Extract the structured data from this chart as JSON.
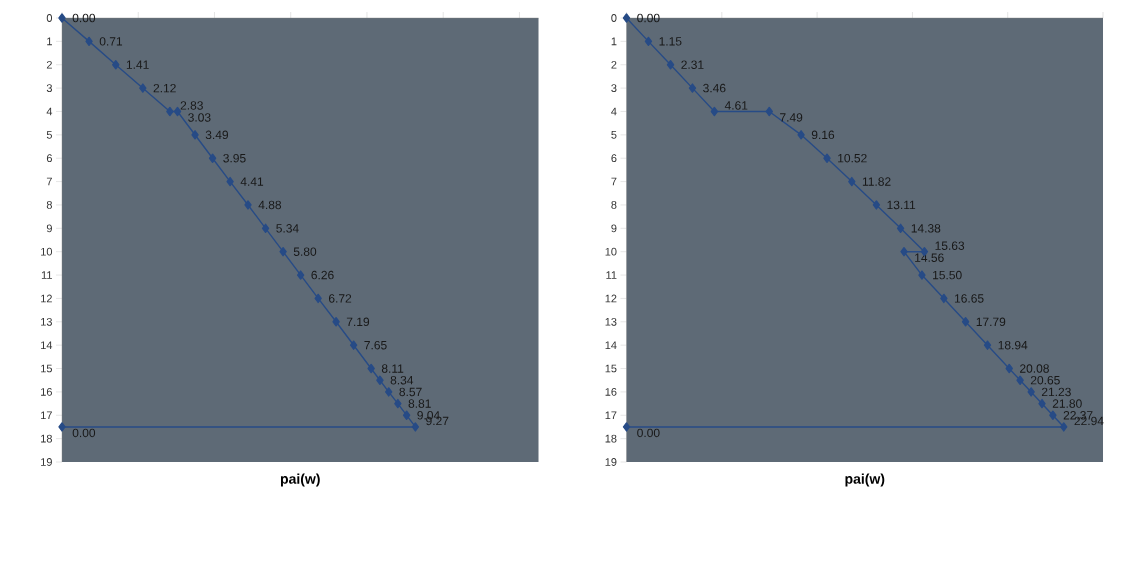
{
  "chart_data": [
    {
      "type": "line",
      "orientation": "horizontal",
      "xlabel": "pai(w)",
      "color": "#274b86",
      "marker": "diamond",
      "tick_labels": "y",
      "x": [
        0,
        1,
        2,
        3,
        4,
        4,
        5,
        6,
        7,
        8,
        9,
        10,
        11,
        12,
        13,
        14,
        15,
        15.5,
        16,
        16.5,
        17,
        17.5,
        17.5
      ],
      "values": [
        0,
        0.71,
        1.41,
        2.12,
        2.83,
        3.03,
        3.49,
        3.95,
        4.41,
        4.88,
        5.34,
        5.8,
        6.26,
        6.72,
        7.19,
        7.65,
        8.11,
        8.34,
        8.57,
        8.81,
        9.04,
        9.27,
        0
      ],
      "value_labels": [
        "0.00",
        "0.71",
        "1.41",
        "2.12",
        "2.83",
        "3.03",
        "3.49",
        "3.95",
        "4.41",
        "4.88",
        "5.34",
        "5.80",
        "6.26",
        "6.72",
        "7.19",
        "7.65",
        "8.11",
        "8.34",
        "8.57",
        "8.81",
        "9.04",
        "9.27",
        "0.00"
      ],
      "xlim": [
        0,
        12.5
      ],
      "xticks": [
        {
          "value": 0,
          "label": null
        },
        {
          "value": 2,
          "label": null
        },
        {
          "value": 4,
          "label": null
        },
        {
          "value": 6,
          "label": null
        },
        {
          "value": 8,
          "label": null
        },
        {
          "value": 10,
          "label": null
        },
        {
          "value": 12,
          "label": null
        }
      ],
      "ylim": [
        19,
        0
      ],
      "yticks": [
        0,
        1,
        2,
        3,
        4,
        5,
        6,
        7,
        8,
        9,
        10,
        11,
        12,
        13,
        14,
        15,
        16,
        17,
        18,
        19
      ]
    },
    {
      "type": "line",
      "orientation": "horizontal",
      "xlabel": "pai(w)",
      "color": "#274b86",
      "marker": "diamond",
      "tick_labels": "y",
      "x": [
        0,
        1,
        2,
        3,
        4,
        4,
        5,
        6,
        7,
        8,
        9,
        10,
        10,
        11,
        12,
        13,
        14,
        15,
        15.5,
        16,
        16.5,
        17,
        17.5,
        17.5
      ],
      "values": [
        0,
        1.15,
        2.31,
        3.46,
        4.61,
        7.49,
        9.16,
        10.52,
        11.82,
        13.11,
        14.38,
        15.63,
        14.56,
        15.5,
        16.65,
        17.79,
        18.94,
        20.08,
        20.65,
        21.23,
        21.8,
        22.37,
        22.94,
        0
      ],
      "value_labels": [
        "0.00",
        "1.15",
        "2.31",
        "3.46",
        "4.61",
        "7.49",
        "9.16",
        "10.52",
        "11.82",
        "13.11",
        "14.38",
        "15.63",
        "14.56",
        "15.50",
        "16.65",
        "17.79",
        "18.94",
        "20.08",
        "20.65",
        "21.23",
        "21.80",
        "22.37",
        "22.94",
        "0.00"
      ],
      "xlim": [
        0,
        25
      ],
      "xticks": [
        {
          "value": 0,
          "label": null
        },
        {
          "value": 5,
          "label": null
        },
        {
          "value": 10,
          "label": null
        },
        {
          "value": 15,
          "label": null
        },
        {
          "value": 20,
          "label": null
        },
        {
          "value": 25,
          "label": null
        }
      ],
      "ylim": [
        19,
        0
      ],
      "yticks": [
        0,
        1,
        2,
        3,
        4,
        5,
        6,
        7,
        8,
        9,
        10,
        11,
        12,
        13,
        14,
        15,
        16,
        17,
        18,
        19
      ]
    }
  ]
}
